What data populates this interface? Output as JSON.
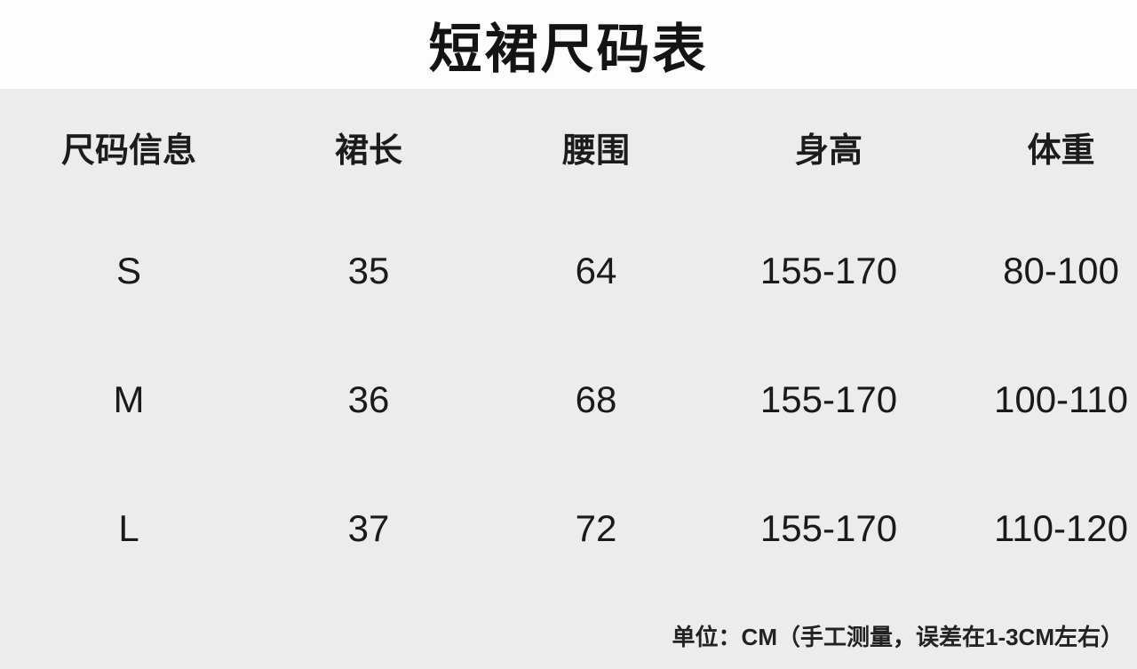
{
  "title": "短裙尺码表",
  "table": {
    "headers": [
      "尺码信息",
      "裙长",
      "腰围",
      "身高",
      "体重"
    ],
    "rows": [
      [
        "S",
        "35",
        "64",
        "155-170",
        "80-100"
      ],
      [
        "M",
        "36",
        "68",
        "155-170",
        "100-110"
      ],
      [
        "L",
        "37",
        "72",
        "155-170",
        "110-120"
      ]
    ]
  },
  "footer_note": "单位：CM（手工测量，误差在1-3CM左右）",
  "colors": {
    "page_background": "#ececec",
    "title_band_background": "#fdfdfd",
    "text": "#1a1a1a"
  },
  "chart_data": {
    "type": "table",
    "title": "短裙尺码表",
    "columns": [
      "尺码信息",
      "裙长",
      "腰围",
      "身高",
      "体重"
    ],
    "rows": [
      [
        "S",
        "35",
        "64",
        "155-170",
        "80-100"
      ],
      [
        "M",
        "36",
        "68",
        "155-170",
        "100-110"
      ],
      [
        "L",
        "37",
        "72",
        "155-170",
        "110-120"
      ]
    ],
    "note": "单位：CM（手工测量，误差在1-3CM左右）"
  }
}
